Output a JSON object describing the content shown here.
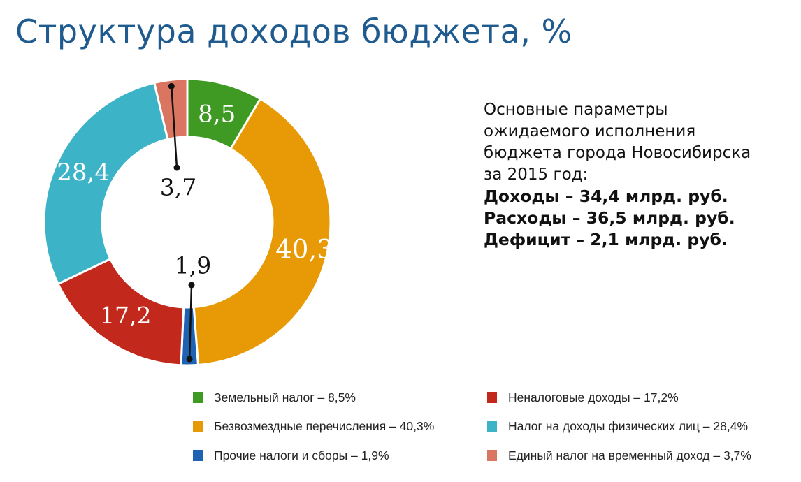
{
  "title": "Структура доходов бюджета, %",
  "info": {
    "lines": [
      "Основные параметры",
      "ожидаемого исполнения",
      "бюджета города Новосибирска",
      "за 2015 год:"
    ],
    "bold_lines": [
      "Доходы –  34,4 млрд. руб.",
      "Расходы – 36,5 млрд. руб.",
      "Дефицит – 2,1 млрд. руб."
    ]
  },
  "chart_data": {
    "type": "pie",
    "donut": true,
    "series": [
      {
        "name": "Земельный налог",
        "label": "8,5",
        "value": 8.5,
        "color": "#3e9a22"
      },
      {
        "name": "Безвозмездные перечисления",
        "label": "40,3",
        "value": 40.3,
        "color": "#e89a06"
      },
      {
        "name": "Прочие налоги и сборы",
        "label": "1,9",
        "value": 1.9,
        "color": "#1e62b4"
      },
      {
        "name": "Неналоговые доходы",
        "label": "17,2",
        "value": 17.2,
        "color": "#c2291c"
      },
      {
        "name": "Налог на доходы физических лиц",
        "label": "28,4",
        "value": 28.4,
        "color": "#3db3c8"
      },
      {
        "name": "Единый налог на временный доход",
        "label": "3,7",
        "value": 3.7,
        "color": "#d97560"
      }
    ],
    "legend": {
      "placement": "bottom",
      "items": [
        "Земельный налог – 8,5%",
        "Безвозмездные перечисления – 40,3%",
        "Прочие налоги и сборы – 1,9%",
        "Неналоговые доходы – 17,2%",
        "Налог на доходы физических лиц – 28,4%",
        "Единый налог на временный доход – 3,7%"
      ]
    }
  }
}
